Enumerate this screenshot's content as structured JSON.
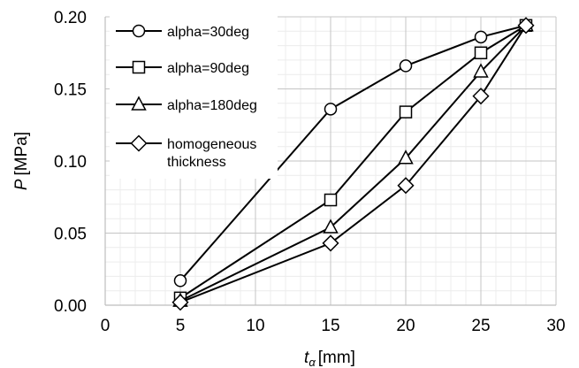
{
  "chart_data": {
    "type": "line",
    "xlabel": {
      "symbol": "t",
      "subscript": "α",
      "unit": "[mm]"
    },
    "ylabel": {
      "symbol": "P",
      "unit": "[MPa]"
    },
    "xlim": [
      0,
      30
    ],
    "ylim": [
      0,
      0.2
    ],
    "x_ticks": [
      0,
      5,
      10,
      15,
      20,
      25,
      30
    ],
    "y_ticks": [
      0.0,
      0.05,
      0.1,
      0.15,
      0.2
    ],
    "x_tick_labels": [
      "0",
      "5",
      "10",
      "15",
      "20",
      "25",
      "30"
    ],
    "y_tick_labels": [
      "0.00",
      "0.05",
      "0.10",
      "0.15",
      "0.20"
    ],
    "grid": {
      "major": true,
      "minor": true
    },
    "legend_position": "top-left",
    "series": [
      {
        "name": "alpha=30deg",
        "marker": "circle",
        "x": [
          5,
          15,
          20,
          25,
          28
        ],
        "y": [
          0.017,
          0.136,
          0.166,
          0.186,
          0.194
        ]
      },
      {
        "name": "alpha=90deg",
        "marker": "square",
        "x": [
          5,
          15,
          20,
          25,
          28
        ],
        "y": [
          0.005,
          0.073,
          0.134,
          0.175,
          0.194
        ]
      },
      {
        "name": "alpha=180deg",
        "marker": "triangle",
        "x": [
          5,
          15,
          20,
          25,
          28
        ],
        "y": [
          0.003,
          0.054,
          0.102,
          0.162,
          0.194
        ]
      },
      {
        "name": "homogeneous thickness",
        "name_lines": [
          "homogeneous",
          "thickness"
        ],
        "marker": "diamond",
        "x": [
          5,
          15,
          20,
          25,
          28
        ],
        "y": [
          0.002,
          0.043,
          0.083,
          0.145,
          0.194
        ]
      }
    ]
  }
}
